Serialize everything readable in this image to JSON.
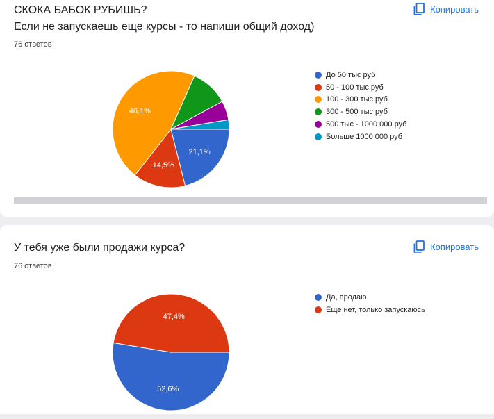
{
  "charts": [
    {
      "title": "СКОКА БАБОК РУБИШЬ?",
      "subtitle": "Если не запускаешь еще курсы - то напиши общий доход)",
      "responses": "76 ответов",
      "copy_label": "Копировать"
    },
    {
      "title": "У тебя уже были продажи курса?",
      "responses": "76 ответов",
      "copy_label": "Копировать"
    }
  ],
  "chart_data": [
    {
      "type": "pie",
      "title": "СКОКА БАБОК РУБИШЬ?",
      "legend_position": "right",
      "slices": [
        {
          "label": "До 50 тыс руб",
          "value": 21.1,
          "display": "21,1%",
          "color": "#3366cc"
        },
        {
          "label": "50 - 100 тыс руб",
          "value": 14.5,
          "display": "14,5%",
          "color": "#dc3912"
        },
        {
          "label": "100 - 300 тыс руб",
          "value": 46.1,
          "display": "46,1%",
          "color": "#ff9900"
        },
        {
          "label": "300 - 500 тыс руб",
          "value": 10.5,
          "display": "",
          "color": "#109618"
        },
        {
          "label": "500 тыс - 1000 000 руб",
          "value": 5.3,
          "display": "",
          "color": "#990099"
        },
        {
          "label": "Больше 1000 000 руб",
          "value": 2.6,
          "display": "",
          "color": "#0099c6"
        }
      ]
    },
    {
      "type": "pie",
      "title": "У тебя уже были продажи курса?",
      "legend_position": "right",
      "slices": [
        {
          "label": "Да, продаю",
          "value": 52.6,
          "display": "52,6%",
          "color": "#3366cc"
        },
        {
          "label": "Еще нет, только запускаюсь",
          "value": 47.4,
          "display": "47,4%",
          "color": "#dc3912"
        }
      ]
    }
  ]
}
